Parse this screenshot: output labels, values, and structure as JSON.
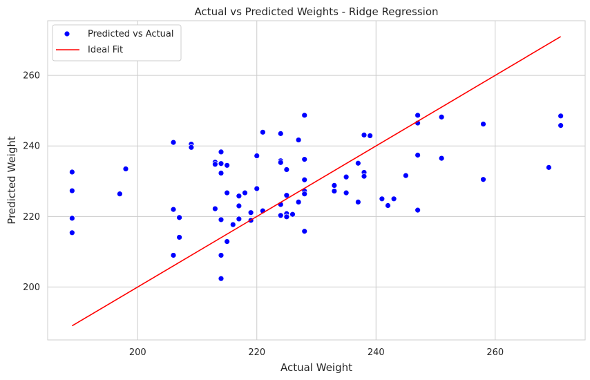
{
  "chart_data": {
    "type": "scatter",
    "title": "Actual vs Predicted Weights - Ridge Regression",
    "xlabel": "Actual Weight",
    "ylabel": "Predicted Weight",
    "xlim": [
      184.9,
      275.1
    ],
    "ylim": [
      185,
      275.5
    ],
    "xticks": [
      200,
      220,
      240,
      260
    ],
    "yticks": [
      200,
      220,
      240,
      260
    ],
    "grid": true,
    "legend_position": "top-left",
    "series": [
      {
        "name": "Predicted vs Actual",
        "kind": "scatter",
        "color": "#0000ff",
        "x": [
          189,
          189,
          189,
          189,
          197,
          198,
          206,
          206,
          206,
          207,
          207,
          209,
          209,
          213,
          213,
          213,
          214,
          214,
          214,
          214,
          214,
          214,
          215,
          215,
          215,
          216,
          217,
          217,
          217,
          218,
          219,
          219,
          220,
          220,
          221,
          221,
          224,
          224,
          224,
          224,
          224,
          225,
          225,
          225,
          225,
          226,
          227,
          227,
          228,
          228,
          228,
          228,
          228,
          228,
          228,
          233,
          233,
          235,
          235,
          237,
          237,
          238,
          238,
          238,
          239,
          241,
          242,
          243,
          245,
          247,
          247,
          247,
          247,
          251,
          251,
          258,
          258,
          269,
          271,
          271
        ],
        "y": [
          232.6,
          227.3,
          219.5,
          215.4,
          226.4,
          233.5,
          241.0,
          222.0,
          209.0,
          219.7,
          214.1,
          240.5,
          239.6,
          235.4,
          234.8,
          222.2,
          238.3,
          235.0,
          232.3,
          219.1,
          209.0,
          202.4,
          234.5,
          226.7,
          212.9,
          217.7,
          225.8,
          223.0,
          219.3,
          226.7,
          221.1,
          218.9,
          237.2,
          227.9,
          243.9,
          221.6,
          243.5,
          235.8,
          235.3,
          223.4,
          220.3,
          233.3,
          226.0,
          220.8,
          219.9,
          220.6,
          241.7,
          224.1,
          248.7,
          236.2,
          230.4,
          227.2,
          226.4,
          215.8,
          215.8,
          228.8,
          227.2,
          231.2,
          226.7,
          235.1,
          224.1,
          243.1,
          232.5,
          231.4,
          242.9,
          225.0,
          223.1,
          225.0,
          231.6,
          248.7,
          246.5,
          237.4,
          221.8,
          248.2,
          236.5,
          246.2,
          230.5,
          233.9,
          248.5,
          245.8
        ]
      },
      {
        "name": "Ideal Fit",
        "kind": "line",
        "color": "#ff0000",
        "x": [
          189,
          271
        ],
        "y": [
          189,
          271
        ]
      }
    ]
  }
}
